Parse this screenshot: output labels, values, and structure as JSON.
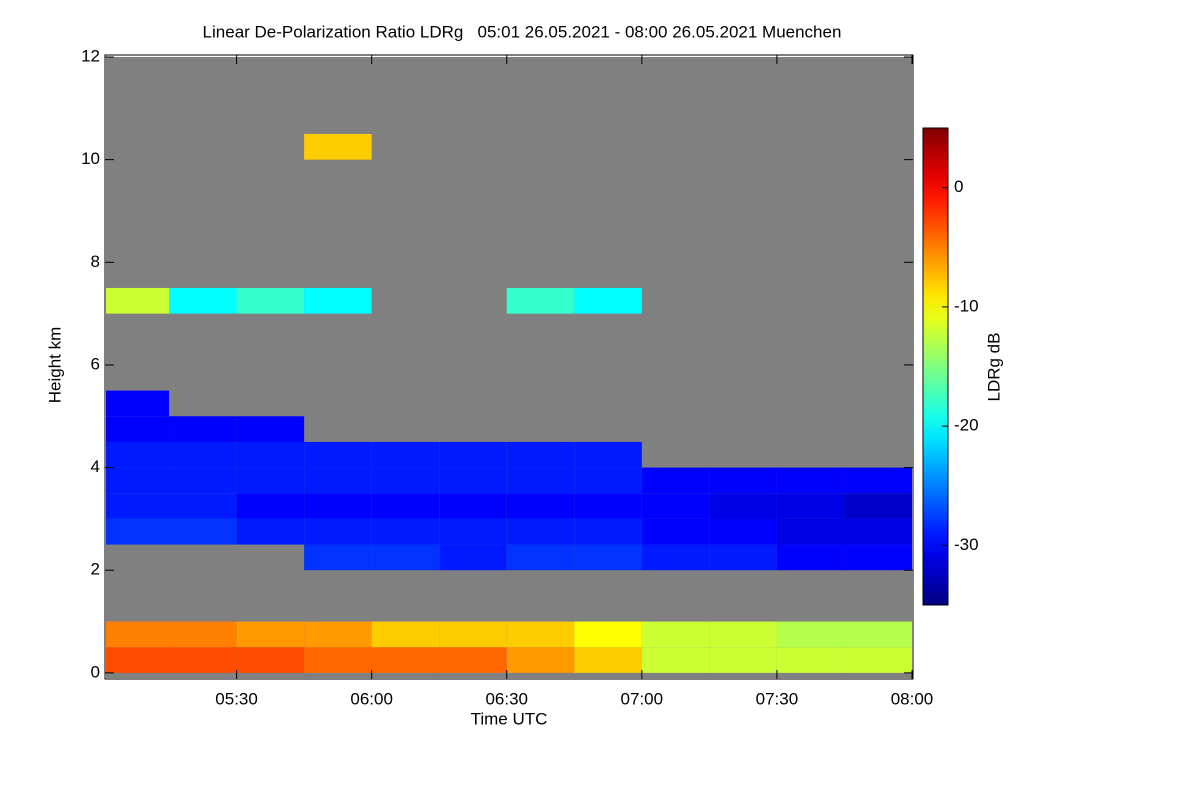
{
  "chart_data": {
    "type": "heatmap",
    "title": "Linear De-Polarization Ratio LDRg   05:01 26.05.2021 - 08:00 26.05.2021 Muenchen",
    "x_label": "Time UTC",
    "y_label": "Height km",
    "colorbar_label": "LDRg dB",
    "xlim": [
      301,
      480
    ],
    "xticks": [
      {
        "value": 330,
        "label": "05:30"
      },
      {
        "value": 360,
        "label": "06:00"
      },
      {
        "value": 390,
        "label": "06:30"
      },
      {
        "value": 420,
        "label": "07:00"
      },
      {
        "value": 450,
        "label": "07:30"
      },
      {
        "value": 480,
        "label": "08:00"
      }
    ],
    "ylim": [
      -0.1,
      12
    ],
    "yticks": [
      0,
      2,
      4,
      6,
      8,
      10,
      12
    ],
    "zlim": [
      -35,
      5
    ],
    "zticks": [
      0,
      -10,
      -20,
      -30
    ],
    "colormap": "jet",
    "background_color": "#808080",
    "x_edges": [
      301,
      315,
      330,
      345,
      360,
      375,
      390,
      405,
      420,
      435,
      450,
      465,
      480
    ],
    "y_edges": [
      0,
      0.5,
      1,
      1.5,
      2,
      2.5,
      3,
      3.5,
      4,
      4.5,
      5,
      5.5,
      6,
      6.5,
      7,
      7.5,
      8,
      8.5,
      9,
      9.5,
      10,
      10.5,
      11,
      11.5,
      12
    ],
    "values": [
      [
        -3,
        -3,
        -3,
        -4,
        -4,
        -4,
        -6,
        -8,
        -12,
        -12,
        -12,
        -12
      ],
      [
        -5,
        -5,
        -6,
        -6,
        -8,
        -8,
        -8,
        -10,
        -12,
        -12,
        -13,
        -13
      ],
      [
        null,
        null,
        null,
        null,
        null,
        null,
        null,
        null,
        null,
        null,
        null,
        null
      ],
      [
        null,
        null,
        null,
        null,
        null,
        null,
        null,
        null,
        null,
        null,
        null,
        null
      ],
      [
        null,
        null,
        null,
        -28,
        -28,
        -29,
        -28,
        -28,
        -29,
        -29,
        -30,
        -30
      ],
      [
        -28,
        -28,
        -29,
        -29,
        -29,
        -29,
        -29,
        -29,
        -30,
        -30,
        -31,
        -31
      ],
      [
        -29,
        -29,
        -30,
        -30,
        -30,
        -30,
        -30,
        -30,
        -30,
        -31,
        -31,
        -32
      ],
      [
        -29,
        -29,
        -29,
        -29,
        -29,
        -29,
        -29,
        -29,
        -30,
        -30,
        -30,
        -30
      ],
      [
        -29,
        -29,
        -29,
        -29,
        -29,
        -29,
        -29,
        -29,
        null,
        null,
        null,
        null
      ],
      [
        -30,
        -30,
        -30,
        null,
        null,
        null,
        null,
        null,
        null,
        null,
        null,
        null
      ],
      [
        -30,
        null,
        null,
        null,
        null,
        null,
        null,
        null,
        null,
        null,
        null,
        null
      ],
      [
        null,
        null,
        null,
        null,
        null,
        null,
        null,
        null,
        null,
        null,
        null,
        null
      ],
      [
        null,
        null,
        null,
        null,
        null,
        null,
        null,
        null,
        null,
        null,
        null,
        null
      ],
      [
        null,
        null,
        null,
        null,
        null,
        null,
        null,
        null,
        null,
        null,
        null,
        null
      ],
      [
        -12,
        -20,
        -18,
        -20,
        null,
        null,
        -18,
        -20,
        null,
        null,
        null,
        null
      ],
      [
        null,
        null,
        null,
        null,
        null,
        null,
        null,
        null,
        null,
        null,
        null,
        null
      ],
      [
        null,
        null,
        null,
        null,
        null,
        null,
        null,
        null,
        null,
        null,
        null,
        null
      ],
      [
        null,
        null,
        null,
        null,
        null,
        null,
        null,
        null,
        null,
        null,
        null,
        null
      ],
      [
        null,
        null,
        null,
        null,
        null,
        null,
        null,
        null,
        null,
        null,
        null,
        null
      ],
      [
        null,
        null,
        null,
        null,
        null,
        null,
        null,
        null,
        null,
        null,
        null,
        null
      ],
      [
        null,
        null,
        null,
        -8,
        null,
        null,
        null,
        null,
        null,
        null,
        null,
        null
      ],
      [
        null,
        null,
        null,
        null,
        null,
        null,
        null,
        null,
        null,
        null,
        null,
        null
      ],
      [
        null,
        null,
        null,
        null,
        null,
        null,
        null,
        null,
        null,
        null,
        null,
        null
      ],
      [
        null,
        null,
        null,
        null,
        null,
        null,
        null,
        null,
        null,
        null,
        null,
        null
      ]
    ]
  }
}
